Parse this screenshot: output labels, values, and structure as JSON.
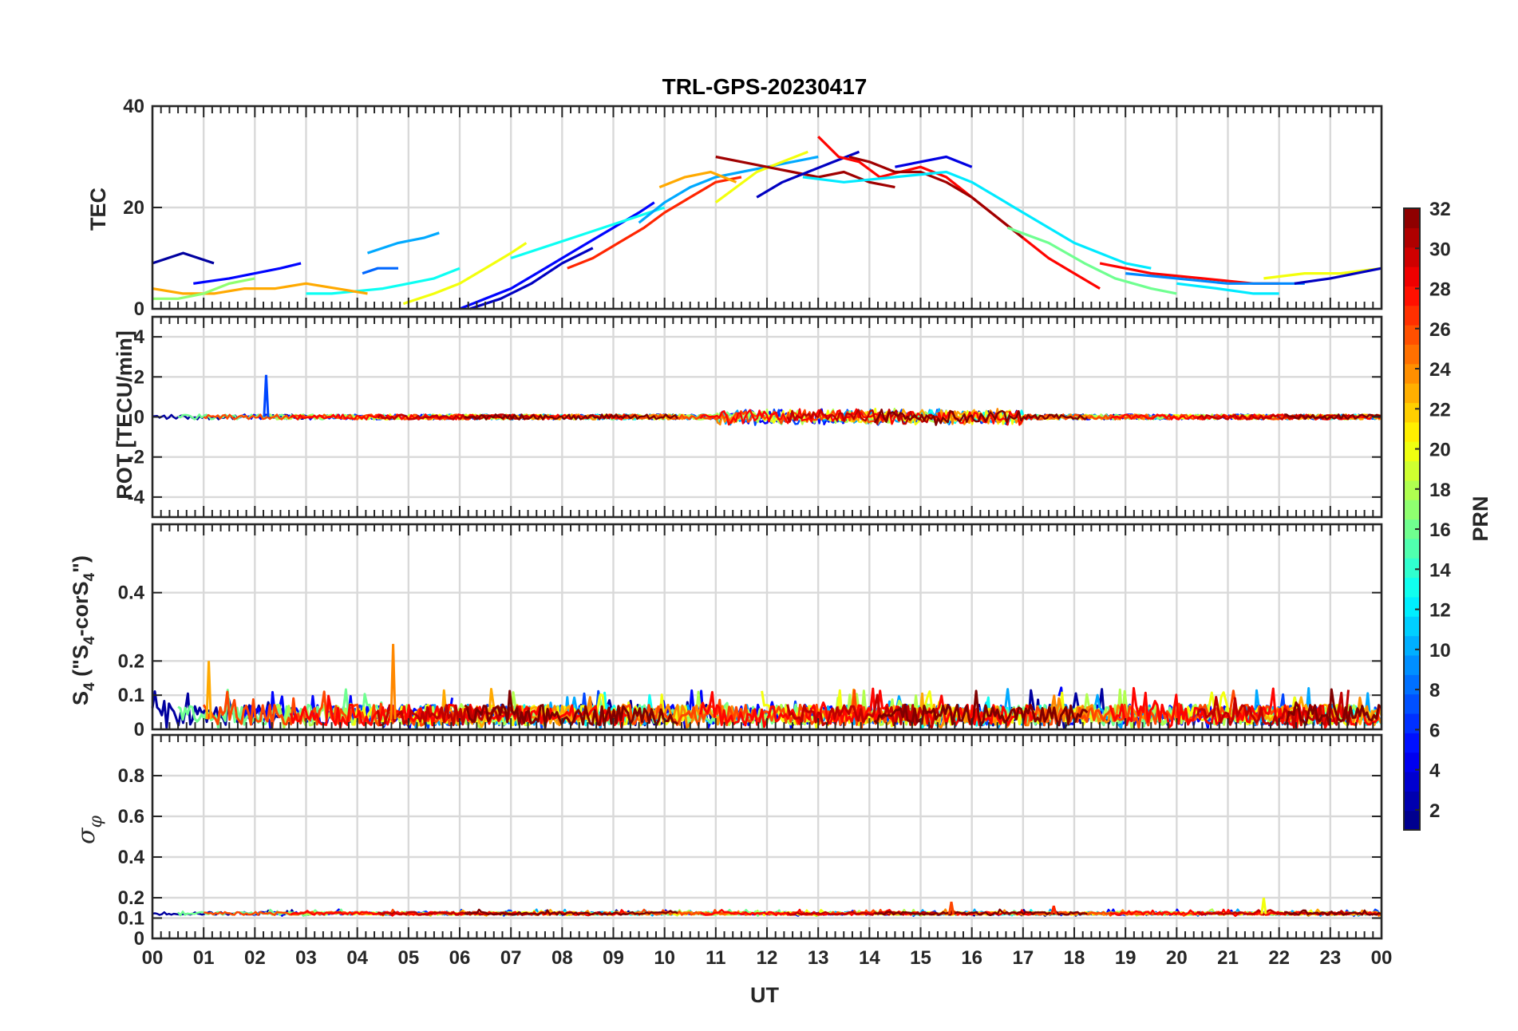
{
  "chart_data": {
    "type": "line",
    "title": "TRL-GPS-20230417",
    "xlabel": "UT",
    "x_tick_labels": [
      "00",
      "01",
      "02",
      "03",
      "04",
      "05",
      "06",
      "07",
      "08",
      "09",
      "10",
      "11",
      "12",
      "13",
      "14",
      "15",
      "16",
      "17",
      "18",
      "19",
      "20",
      "21",
      "22",
      "23",
      "00"
    ],
    "xlim": [
      0,
      24
    ],
    "grid": true,
    "colorbar": {
      "label": "PRN",
      "range": [
        1,
        32
      ],
      "colormap": "jet",
      "tick_labels": [
        "2",
        "4",
        "6",
        "8",
        "10",
        "12",
        "14",
        "16",
        "18",
        "20",
        "22",
        "24",
        "26",
        "28",
        "30",
        "32"
      ],
      "tick_values": [
        2,
        4,
        6,
        8,
        10,
        12,
        14,
        16,
        18,
        20,
        22,
        24,
        26,
        28,
        30,
        32
      ]
    },
    "panels": [
      {
        "id": "tec",
        "ylabel": "TEC",
        "ylim": [
          0,
          40
        ],
        "y_tick_values": [
          0,
          20,
          40
        ],
        "y_tick_labels": [
          "0",
          "20",
          "40"
        ],
        "series": [
          {
            "prn": 2,
            "x": [
              0.0,
              0.3,
              0.6,
              0.9,
              1.2
            ],
            "y": [
              9,
              10,
              11,
              10,
              9
            ]
          },
          {
            "prn": 5,
            "x": [
              0.8,
              1.5,
              2.0,
              2.5,
              2.9
            ],
            "y": [
              5,
              6,
              7,
              8,
              9
            ]
          },
          {
            "prn": 8,
            "x": [
              4.1,
              4.4,
              4.8
            ],
            "y": [
              7,
              8,
              8
            ]
          },
          {
            "prn": 10,
            "x": [
              4.2,
              4.8,
              5.3,
              5.6
            ],
            "y": [
              11,
              13,
              14,
              15
            ]
          },
          {
            "prn": 13,
            "x": [
              3.0,
              3.5,
              4.0,
              4.5,
              5.0,
              5.5,
              6.0
            ],
            "y": [
              3,
              3,
              3.5,
              4,
              5,
              6,
              8
            ]
          },
          {
            "prn": 20,
            "x": [
              4.9,
              5.5,
              6.0,
              6.5,
              7.0,
              7.3
            ],
            "y": [
              1,
              3,
              5,
              8,
              11,
              13
            ]
          },
          {
            "prn": 5,
            "x": [
              6.0,
              6.5,
              7.0,
              7.5,
              8.0,
              8.5,
              9.0,
              9.5,
              9.8
            ],
            "y": [
              0,
              2,
              4,
              7,
              10,
              13,
              16,
              19,
              21
            ]
          },
          {
            "prn": 3,
            "x": [
              6.2,
              6.8,
              7.4,
              8.0,
              8.6
            ],
            "y": [
              0,
              2,
              5,
              9,
              12
            ]
          },
          {
            "prn": 13,
            "x": [
              7.0,
              7.6,
              8.2,
              8.8,
              9.4,
              10.0
            ],
            "y": [
              10,
              12,
              14,
              16,
              18,
              20
            ]
          },
          {
            "prn": 27,
            "x": [
              8.1,
              8.6,
              9.1,
              9.6,
              10.0,
              10.5,
              11.0,
              11.5
            ],
            "y": [
              8,
              10,
              13,
              16,
              19,
              22,
              25,
              26
            ]
          },
          {
            "prn": 10,
            "x": [
              9.5,
              10.0,
              10.5,
              11.0,
              11.5,
              12.0,
              12.5,
              13.0
            ],
            "y": [
              17,
              21,
              24,
              26,
              27,
              28,
              29,
              30
            ]
          },
          {
            "prn": 23,
            "x": [
              9.9,
              10.4,
              10.9,
              11.4
            ],
            "y": [
              24,
              26,
              27,
              25
            ]
          },
          {
            "prn": 20,
            "x": [
              11.0,
              11.4,
              11.8,
              12.3,
              12.8
            ],
            "y": [
              21,
              24,
              27,
              29,
              31
            ]
          },
          {
            "prn": 31,
            "x": [
              11.0,
              11.5,
              12.0,
              12.5,
              13.0,
              13.5,
              14.0,
              14.5
            ],
            "y": [
              30,
              29,
              28,
              27,
              26,
              27,
              25,
              24
            ]
          },
          {
            "prn": 3,
            "x": [
              11.8,
              12.3,
              12.8,
              13.3,
              13.8
            ],
            "y": [
              22,
              25,
              27,
              29,
              31
            ]
          },
          {
            "prn": 28,
            "x": [
              13.0,
              13.4,
              13.8,
              14.2,
              14.6,
              15.0,
              15.5,
              16.0,
              16.5,
              17.0,
              17.5,
              18.0,
              18.5
            ],
            "y": [
              34,
              30,
              29,
              26,
              27,
              28,
              26,
              22,
              18,
              14,
              10,
              7,
              4
            ]
          },
          {
            "prn": 31,
            "x": [
              13.6,
              14.0,
              14.5,
              15.0,
              15.5,
              16.0,
              16.5,
              17.0
            ],
            "y": [
              30,
              29,
              27,
              27,
              25,
              22,
              18,
              14
            ]
          },
          {
            "prn": 4,
            "x": [
              14.5,
              15.0,
              15.5,
              16.0
            ],
            "y": [
              28,
              29,
              30,
              28
            ]
          },
          {
            "prn": 12,
            "x": [
              12.7,
              13.5,
              14.5,
              15.5,
              16.0,
              16.5,
              17.0,
              17.5,
              18.0,
              18.5,
              19.0,
              19.5
            ],
            "y": [
              26,
              25,
              26,
              27,
              25,
              22,
              19,
              16,
              13,
              11,
              9,
              8
            ]
          },
          {
            "prn": 16,
            "x": [
              16.7,
              17.5,
              18.2,
              18.8,
              19.5,
              20.0
            ],
            "y": [
              16,
              13,
              9,
              6,
              4,
              3
            ]
          },
          {
            "prn": 28,
            "x": [
              18.5,
              19.5,
              20.5,
              21.5,
              22.0
            ],
            "y": [
              9,
              7,
              6,
              5,
              5
            ]
          },
          {
            "prn": 9,
            "x": [
              19.0,
              20.0,
              21.0,
              22.0,
              22.5
            ],
            "y": [
              7,
              6,
              5,
              5,
              5
            ]
          },
          {
            "prn": 12,
            "x": [
              20.0,
              20.8,
              21.5,
              22.0
            ],
            "y": [
              5,
              4,
              3,
              3
            ]
          },
          {
            "prn": 20,
            "x": [
              21.7,
              22.5,
              23.2,
              24.0
            ],
            "y": [
              6,
              7,
              7,
              8
            ]
          },
          {
            "prn": 3,
            "x": [
              22.3,
              23.0,
              24.0
            ],
            "y": [
              5,
              6,
              8
            ]
          },
          {
            "prn": 23,
            "x": [
              0.0,
              0.6,
              1.2,
              1.8,
              2.4,
              3.0,
              3.6,
              4.2
            ],
            "y": [
              4,
              3,
              3,
              4,
              4,
              5,
              4,
              3
            ]
          },
          {
            "prn": 17,
            "x": [
              0.0,
              0.5,
              1.0,
              1.5,
              2.0
            ],
            "y": [
              2,
              2,
              3,
              5,
              6
            ]
          }
        ]
      },
      {
        "id": "rot",
        "ylabel": "ROT [TECU/min]",
        "ylim": [
          -5,
          5
        ],
        "y_tick_values": [
          -4,
          -2,
          0,
          2,
          4
        ],
        "y_tick_labels": [
          "-4",
          "-2",
          "0",
          "2",
          "4"
        ],
        "note_values": "fluctuations around 0 within about ±1 TECU/min; single spike of about 2 near 02:15 UT (PRN 7)",
        "baseline": 0,
        "spread": 0.25
      },
      {
        "id": "s4",
        "ylabel_main": "S",
        "ylabel_parts": [
          "4",
          " (\"S",
          "4",
          "-corS",
          "4",
          "\")"
        ],
        "ylim": [
          0,
          0.6
        ],
        "y_tick_values": [
          0,
          0.1,
          0.2,
          0.4
        ],
        "y_tick_labels": [
          "0",
          "0.1",
          "0.2",
          "0.4"
        ],
        "baseline": 0.03,
        "spread": 0.06,
        "peak_max": 0.18,
        "spikes": [
          {
            "x": 1.1,
            "y": 0.2,
            "prn": 23
          },
          {
            "x": 4.7,
            "y": 0.25,
            "prn": 24
          }
        ]
      },
      {
        "id": "sigma",
        "ylabel_main": "σ",
        "ylabel_sub": "φ",
        "ylim": [
          0,
          1
        ],
        "y_tick_values": [
          0,
          0.1,
          0.2,
          0.4,
          0.6,
          0.8
        ],
        "y_tick_labels": [
          "0",
          "0.1",
          "0.2",
          "0.4",
          "0.6",
          "0.8"
        ],
        "baseline": 0.12,
        "spread": 0.015,
        "spikes": [
          {
            "x": 15.6,
            "y": 0.18,
            "prn": 26
          },
          {
            "x": 17.6,
            "y": 0.16,
            "prn": 27
          },
          {
            "x": 21.7,
            "y": 0.2,
            "prn": 20
          }
        ]
      }
    ]
  }
}
